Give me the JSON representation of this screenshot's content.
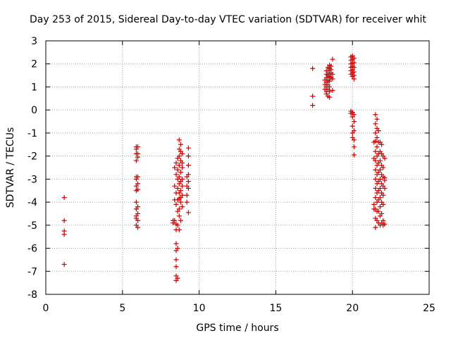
{
  "chart_data": {
    "type": "scatter",
    "title": "Day 253 of 2015, Sidereal Day-to-day VTEC variation (SDTVAR) for receiver whit",
    "xlabel": "GPS time / hours",
    "ylabel": "SDTVAR / TECUs",
    "xlim": [
      0,
      25
    ],
    "ylim": [
      -8,
      3
    ],
    "xticks": [
      0,
      5,
      10,
      15,
      20,
      25
    ],
    "yticks": [
      -8,
      -7,
      -6,
      -5,
      -4,
      -3,
      -2,
      -1,
      0,
      1,
      2,
      3
    ],
    "grid": true,
    "marker": "+",
    "color": "#cc0000",
    "series": [
      {
        "name": "SDTVAR",
        "points": [
          [
            1.2,
            -3.8
          ],
          [
            1.2,
            -4.8
          ],
          [
            1.2,
            -5.25
          ],
          [
            1.2,
            -5.4
          ],
          [
            1.2,
            -6.7
          ],
          [
            5.9,
            -1.6
          ],
          [
            5.9,
            -1.7
          ],
          [
            5.9,
            -1.9
          ],
          [
            5.9,
            -2.2
          ],
          [
            5.9,
            -2.9
          ],
          [
            5.9,
            -3.0
          ],
          [
            5.9,
            -3.3
          ],
          [
            5.9,
            -3.5
          ],
          [
            5.9,
            -4.0
          ],
          [
            5.9,
            -4.3
          ],
          [
            5.9,
            -4.6
          ],
          [
            5.9,
            -4.7
          ],
          [
            5.9,
            -5.0
          ],
          [
            6.0,
            -1.6
          ],
          [
            6.0,
            -1.9
          ],
          [
            6.0,
            -2.05
          ],
          [
            6.0,
            -2.9
          ],
          [
            6.0,
            -3.2
          ],
          [
            6.0,
            -3.45
          ],
          [
            6.0,
            -4.2
          ],
          [
            6.0,
            -4.5
          ],
          [
            6.0,
            -4.8
          ],
          [
            6.0,
            -5.1
          ],
          [
            8.3,
            -4.8
          ],
          [
            8.3,
            -4.9
          ],
          [
            8.4,
            -2.5
          ],
          [
            8.4,
            -3.3
          ],
          [
            8.4,
            -3.9
          ],
          [
            8.4,
            -4.8
          ],
          [
            8.5,
            -2.3
          ],
          [
            8.5,
            -2.8
          ],
          [
            8.5,
            -3.6
          ],
          [
            8.5,
            -4.1
          ],
          [
            8.5,
            -4.95
          ],
          [
            8.5,
            -5.2
          ],
          [
            8.5,
            -5.8
          ],
          [
            8.5,
            -6.1
          ],
          [
            8.5,
            -6.5
          ],
          [
            8.5,
            -6.8
          ],
          [
            8.5,
            -7.2
          ],
          [
            8.5,
            -7.4
          ],
          [
            8.6,
            -2.1
          ],
          [
            8.6,
            -2.6
          ],
          [
            8.6,
            -3.0
          ],
          [
            8.6,
            -3.4
          ],
          [
            8.6,
            -3.9
          ],
          [
            8.6,
            -4.4
          ],
          [
            8.6,
            -5.0
          ],
          [
            8.6,
            -6.0
          ],
          [
            8.6,
            -7.3
          ],
          [
            8.7,
            -1.3
          ],
          [
            8.7,
            -1.7
          ],
          [
            8.7,
            -2.0
          ],
          [
            8.7,
            -2.4
          ],
          [
            8.7,
            -2.9
          ],
          [
            8.7,
            -3.2
          ],
          [
            8.7,
            -3.6
          ],
          [
            8.7,
            -3.85
          ],
          [
            8.7,
            -4.3
          ],
          [
            8.7,
            -4.6
          ],
          [
            8.7,
            -5.2
          ],
          [
            8.8,
            -1.5
          ],
          [
            8.8,
            -1.8
          ],
          [
            8.8,
            -2.2
          ],
          [
            8.8,
            -2.7
          ],
          [
            8.8,
            -3.1
          ],
          [
            8.8,
            -3.5
          ],
          [
            8.8,
            -3.8
          ],
          [
            8.8,
            -4.0
          ],
          [
            8.8,
            -4.8
          ],
          [
            8.9,
            -1.9
          ],
          [
            8.9,
            -2.3
          ],
          [
            8.9,
            -2.5
          ],
          [
            8.9,
            -3.0
          ],
          [
            8.9,
            -3.3
          ],
          [
            8.9,
            -3.7
          ],
          [
            8.9,
            -4.2
          ],
          [
            9.2,
            -2.9
          ],
          [
            9.2,
            -3.3
          ],
          [
            9.2,
            -3.7
          ],
          [
            9.2,
            -4.0
          ],
          [
            9.3,
            -1.65
          ],
          [
            9.3,
            -2.0
          ],
          [
            9.3,
            -2.4
          ],
          [
            9.3,
            -2.8
          ],
          [
            9.3,
            -3.1
          ],
          [
            9.3,
            -3.4
          ],
          [
            9.3,
            -4.45
          ],
          [
            17.4,
            1.8
          ],
          [
            17.4,
            0.6
          ],
          [
            17.4,
            0.2
          ],
          [
            18.2,
            1.1
          ],
          [
            18.2,
            1.3
          ],
          [
            18.2,
            0.9
          ],
          [
            18.3,
            0.8
          ],
          [
            18.3,
            1.0
          ],
          [
            18.3,
            1.2
          ],
          [
            18.3,
            1.4
          ],
          [
            18.3,
            1.55
          ],
          [
            18.3,
            1.7
          ],
          [
            18.3,
            0.7
          ],
          [
            18.4,
            0.6
          ],
          [
            18.4,
            0.9
          ],
          [
            18.4,
            1.1
          ],
          [
            18.4,
            1.3
          ],
          [
            18.4,
            1.5
          ],
          [
            18.4,
            1.7
          ],
          [
            18.4,
            1.85
          ],
          [
            18.5,
            0.55
          ],
          [
            18.5,
            0.8
          ],
          [
            18.5,
            1.0
          ],
          [
            18.5,
            1.25
          ],
          [
            18.5,
            1.45
          ],
          [
            18.5,
            1.6
          ],
          [
            18.5,
            1.8
          ],
          [
            18.5,
            1.95
          ],
          [
            18.6,
            1.4
          ],
          [
            18.6,
            1.6
          ],
          [
            18.6,
            1.75
          ],
          [
            18.6,
            1.9
          ],
          [
            18.7,
            2.2
          ],
          [
            18.7,
            1.55
          ],
          [
            18.7,
            1.35
          ],
          [
            18.7,
            0.85
          ],
          [
            19.9,
            2.3
          ],
          [
            19.9,
            2.15
          ],
          [
            19.9,
            2.0
          ],
          [
            19.9,
            1.85
          ],
          [
            19.9,
            1.7
          ],
          [
            19.9,
            1.55
          ],
          [
            19.9,
            -0.05
          ],
          [
            19.9,
            -0.15
          ],
          [
            20.0,
            2.35
          ],
          [
            20.0,
            2.2
          ],
          [
            20.0,
            2.05
          ],
          [
            20.0,
            1.9
          ],
          [
            20.0,
            1.75
          ],
          [
            20.0,
            1.6
          ],
          [
            20.0,
            1.45
          ],
          [
            20.0,
            -0.1
          ],
          [
            20.0,
            -0.3
          ],
          [
            20.0,
            -0.7
          ],
          [
            20.0,
            -1.0
          ],
          [
            20.0,
            -1.2
          ],
          [
            20.1,
            2.25
          ],
          [
            20.1,
            2.05
          ],
          [
            20.1,
            1.85
          ],
          [
            20.1,
            1.65
          ],
          [
            20.1,
            1.5
          ],
          [
            20.1,
            1.35
          ],
          [
            20.1,
            -0.2
          ],
          [
            20.1,
            -0.5
          ],
          [
            20.1,
            -0.9
          ],
          [
            20.1,
            -1.3
          ],
          [
            20.1,
            -1.6
          ],
          [
            20.1,
            -1.95
          ],
          [
            21.4,
            -4.1
          ],
          [
            21.4,
            -4.3
          ],
          [
            21.4,
            -2.1
          ],
          [
            21.4,
            -1.4
          ],
          [
            21.5,
            -0.2
          ],
          [
            21.5,
            -0.6
          ],
          [
            21.5,
            -1.0
          ],
          [
            21.5,
            -1.35
          ],
          [
            21.5,
            -1.8
          ],
          [
            21.5,
            -2.2
          ],
          [
            21.5,
            -2.6
          ],
          [
            21.5,
            -3.0
          ],
          [
            21.5,
            -3.4
          ],
          [
            21.5,
            -3.8
          ],
          [
            21.5,
            -4.3
          ],
          [
            21.5,
            -4.7
          ],
          [
            21.5,
            -5.1
          ],
          [
            21.6,
            -0.4
          ],
          [
            21.6,
            -0.8
          ],
          [
            21.6,
            -1.2
          ],
          [
            21.6,
            -1.6
          ],
          [
            21.6,
            -2.0
          ],
          [
            21.6,
            -2.4
          ],
          [
            21.6,
            -2.8
          ],
          [
            21.6,
            -3.2
          ],
          [
            21.6,
            -3.6
          ],
          [
            21.6,
            -4.0
          ],
          [
            21.6,
            -4.4
          ],
          [
            21.6,
            -4.8
          ],
          [
            21.7,
            -0.9
          ],
          [
            21.7,
            -1.4
          ],
          [
            21.7,
            -1.9
          ],
          [
            21.7,
            -2.3
          ],
          [
            21.7,
            -2.7
          ],
          [
            21.7,
            -3.1
          ],
          [
            21.7,
            -3.5
          ],
          [
            21.7,
            -3.9
          ],
          [
            21.7,
            -4.4
          ],
          [
            21.7,
            -4.9
          ],
          [
            21.8,
            -1.4
          ],
          [
            21.8,
            -1.8
          ],
          [
            21.8,
            -2.2
          ],
          [
            21.8,
            -2.6
          ],
          [
            21.8,
            -3.0
          ],
          [
            21.8,
            -3.4
          ],
          [
            21.8,
            -3.8
          ],
          [
            21.8,
            -4.2
          ],
          [
            21.8,
            -4.6
          ],
          [
            21.8,
            -5.0
          ],
          [
            21.9,
            -1.5
          ],
          [
            21.9,
            -1.9
          ],
          [
            21.9,
            -2.4
          ],
          [
            21.9,
            -2.8
          ],
          [
            21.9,
            -3.2
          ],
          [
            21.9,
            -3.6
          ],
          [
            21.9,
            -4.0
          ],
          [
            21.9,
            -4.5
          ],
          [
            21.9,
            -4.9
          ],
          [
            22.0,
            -2.0
          ],
          [
            22.0,
            -2.5
          ],
          [
            22.0,
            -2.9
          ],
          [
            22.0,
            -3.3
          ],
          [
            22.0,
            -3.7
          ],
          [
            22.0,
            -4.1
          ],
          [
            22.0,
            -4.8
          ],
          [
            22.0,
            -5.0
          ],
          [
            22.1,
            -2.1
          ],
          [
            22.1,
            -2.95
          ],
          [
            22.1,
            -3.05
          ],
          [
            22.1,
            -3.4
          ],
          [
            22.1,
            -4.95
          ]
        ]
      }
    ]
  }
}
